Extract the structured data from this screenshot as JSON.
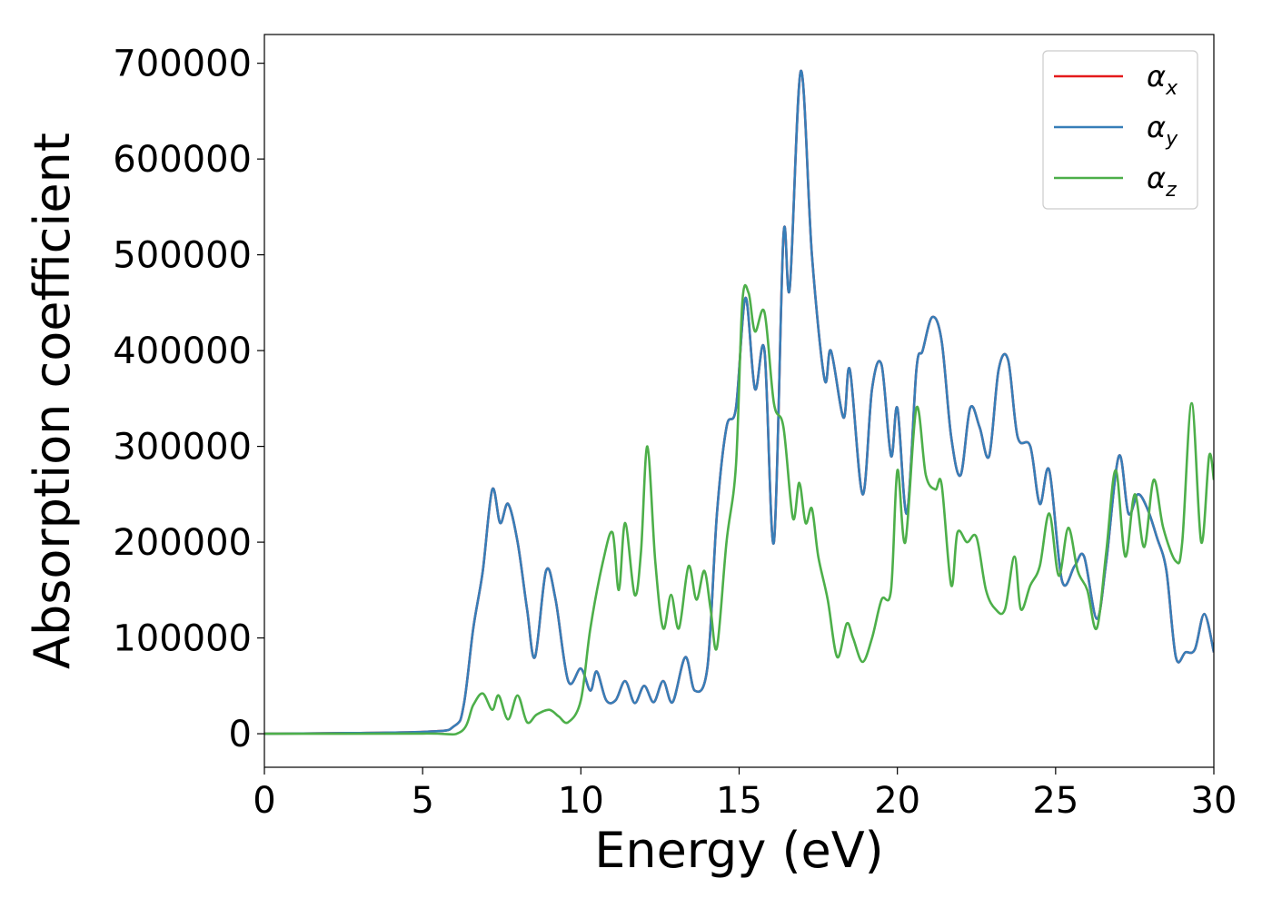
{
  "chart_data": {
    "type": "line",
    "title": "",
    "xlabel": "Energy (eV)",
    "ylabel": "Absorption coefficient",
    "xlim": [
      0,
      30
    ],
    "ylim": [
      -35000,
      730000
    ],
    "xticks": [
      "0",
      "5",
      "10",
      "15",
      "20",
      "25",
      "30"
    ],
    "yticks": [
      "0",
      "100000",
      "200000",
      "300000",
      "400000",
      "500000",
      "600000",
      "700000"
    ],
    "grid": false,
    "legend_position": "top-right",
    "legend": [
      {
        "main": "α",
        "sub": "x"
      },
      {
        "main": "α",
        "sub": "y"
      },
      {
        "main": "α",
        "sub": "z"
      }
    ],
    "series": [
      {
        "color": "#e41a1c",
        "x": [
          0,
          5,
          6,
          6.3,
          6.6,
          6.9,
          7.2,
          7.45,
          7.7,
          8.0,
          8.3,
          8.55,
          8.9,
          9.2,
          9.6,
          10.0,
          10.3,
          10.5,
          10.8,
          11.1,
          11.4,
          11.7,
          12.0,
          12.3,
          12.6,
          12.9,
          13.3,
          13.6,
          14.0,
          14.3,
          14.6,
          14.9,
          15.2,
          15.5,
          15.8,
          16.1,
          16.4,
          16.6,
          16.95,
          17.3,
          17.7,
          17.9,
          18.3,
          18.5,
          18.9,
          19.2,
          19.5,
          19.8,
          20.0,
          20.3,
          20.6,
          20.8,
          21.1,
          21.4,
          21.7,
          22.0,
          22.3,
          22.6,
          22.9,
          23.2,
          23.5,
          23.8,
          24.2,
          24.5,
          24.8,
          25.2,
          25.6,
          25.9,
          26.3,
          26.6,
          27.0,
          27.3,
          27.6,
          27.9,
          28.2,
          28.5,
          28.8,
          29.1,
          29.4,
          29.7,
          30.0
        ],
        "y": [
          0,
          2000,
          8000,
          30000,
          110000,
          170000,
          255000,
          220000,
          240000,
          200000,
          130000,
          80000,
          170000,
          140000,
          55000,
          68000,
          45000,
          65000,
          35000,
          35000,
          55000,
          32000,
          50000,
          33000,
          55000,
          33000,
          80000,
          45000,
          70000,
          230000,
          320000,
          340000,
          455000,
          360000,
          400000,
          200000,
          520000,
          465000,
          692000,
          500000,
          370000,
          400000,
          330000,
          380000,
          250000,
          360000,
          385000,
          290000,
          340000,
          230000,
          380000,
          400000,
          435000,
          410000,
          310000,
          270000,
          340000,
          320000,
          290000,
          380000,
          390000,
          310000,
          300000,
          240000,
          275000,
          160000,
          175000,
          185000,
          120000,
          180000,
          290000,
          230000,
          250000,
          235000,
          205000,
          170000,
          80000,
          85000,
          88000,
          125000,
          85000
        ]
      },
      {
        "color": "#377eb8",
        "x": [
          0,
          5,
          6,
          6.3,
          6.6,
          6.9,
          7.2,
          7.45,
          7.7,
          8.0,
          8.3,
          8.55,
          8.9,
          9.2,
          9.6,
          10.0,
          10.3,
          10.5,
          10.8,
          11.1,
          11.4,
          11.7,
          12.0,
          12.3,
          12.6,
          12.9,
          13.3,
          13.6,
          14.0,
          14.3,
          14.6,
          14.9,
          15.2,
          15.5,
          15.8,
          16.1,
          16.4,
          16.6,
          16.95,
          17.3,
          17.7,
          17.9,
          18.3,
          18.5,
          18.9,
          19.2,
          19.5,
          19.8,
          20.0,
          20.3,
          20.6,
          20.8,
          21.1,
          21.4,
          21.7,
          22.0,
          22.3,
          22.6,
          22.9,
          23.2,
          23.5,
          23.8,
          24.2,
          24.5,
          24.8,
          25.2,
          25.6,
          25.9,
          26.3,
          26.6,
          27.0,
          27.3,
          27.6,
          27.9,
          28.2,
          28.5,
          28.8,
          29.1,
          29.4,
          29.7,
          30.0
        ],
        "y": [
          0,
          2000,
          8000,
          30000,
          110000,
          170000,
          255000,
          220000,
          240000,
          200000,
          130000,
          80000,
          170000,
          140000,
          55000,
          68000,
          45000,
          65000,
          35000,
          35000,
          55000,
          32000,
          50000,
          33000,
          55000,
          33000,
          80000,
          45000,
          70000,
          230000,
          320000,
          340000,
          455000,
          360000,
          400000,
          200000,
          520000,
          465000,
          692000,
          500000,
          370000,
          400000,
          330000,
          380000,
          250000,
          360000,
          385000,
          290000,
          340000,
          230000,
          380000,
          400000,
          435000,
          410000,
          310000,
          270000,
          340000,
          320000,
          290000,
          380000,
          390000,
          310000,
          300000,
          240000,
          275000,
          160000,
          175000,
          185000,
          120000,
          180000,
          290000,
          230000,
          250000,
          235000,
          205000,
          170000,
          80000,
          85000,
          88000,
          125000,
          85000
        ]
      },
      {
        "color": "#4daf4a",
        "x": [
          0,
          5,
          6.2,
          6.6,
          6.9,
          7.2,
          7.4,
          7.7,
          8.0,
          8.3,
          8.6,
          9.0,
          9.3,
          9.6,
          10.0,
          10.3,
          10.7,
          11.0,
          11.2,
          11.4,
          11.7,
          11.9,
          12.1,
          12.35,
          12.6,
          12.85,
          13.1,
          13.4,
          13.65,
          13.9,
          14.1,
          14.3,
          14.6,
          14.9,
          15.1,
          15.3,
          15.5,
          15.8,
          16.1,
          16.4,
          16.7,
          16.9,
          17.1,
          17.3,
          17.5,
          17.8,
          18.1,
          18.4,
          18.6,
          18.9,
          19.2,
          19.5,
          19.8,
          20.0,
          20.25,
          20.6,
          20.9,
          21.2,
          21.4,
          21.7,
          21.9,
          22.2,
          22.5,
          22.8,
          23.1,
          23.4,
          23.7,
          23.9,
          24.2,
          24.5,
          24.8,
          25.1,
          25.4,
          25.7,
          26.0,
          26.3,
          26.6,
          26.9,
          27.2,
          27.5,
          27.8,
          28.1,
          28.4,
          28.8,
          29.0,
          29.3,
          29.6,
          29.85,
          30.0
        ],
        "y": [
          0,
          200,
          2000,
          30000,
          42000,
          25000,
          40000,
          15000,
          40000,
          12000,
          20000,
          25000,
          18000,
          12000,
          35000,
          110000,
          180000,
          210000,
          150000,
          220000,
          145000,
          190000,
          300000,
          180000,
          110000,
          145000,
          110000,
          175000,
          140000,
          170000,
          130000,
          90000,
          200000,
          280000,
          450000,
          460000,
          420000,
          440000,
          345000,
          320000,
          225000,
          262000,
          220000,
          235000,
          185000,
          140000,
          80000,
          115000,
          100000,
          75000,
          100000,
          140000,
          150000,
          275000,
          200000,
          340000,
          270000,
          255000,
          260000,
          155000,
          210000,
          200000,
          205000,
          150000,
          130000,
          130000,
          185000,
          130000,
          155000,
          175000,
          230000,
          165000,
          215000,
          170000,
          150000,
          110000,
          190000,
          275000,
          185000,
          250000,
          195000,
          265000,
          215000,
          180000,
          200000,
          345000,
          200000,
          290000,
          265000
        ]
      }
    ]
  }
}
